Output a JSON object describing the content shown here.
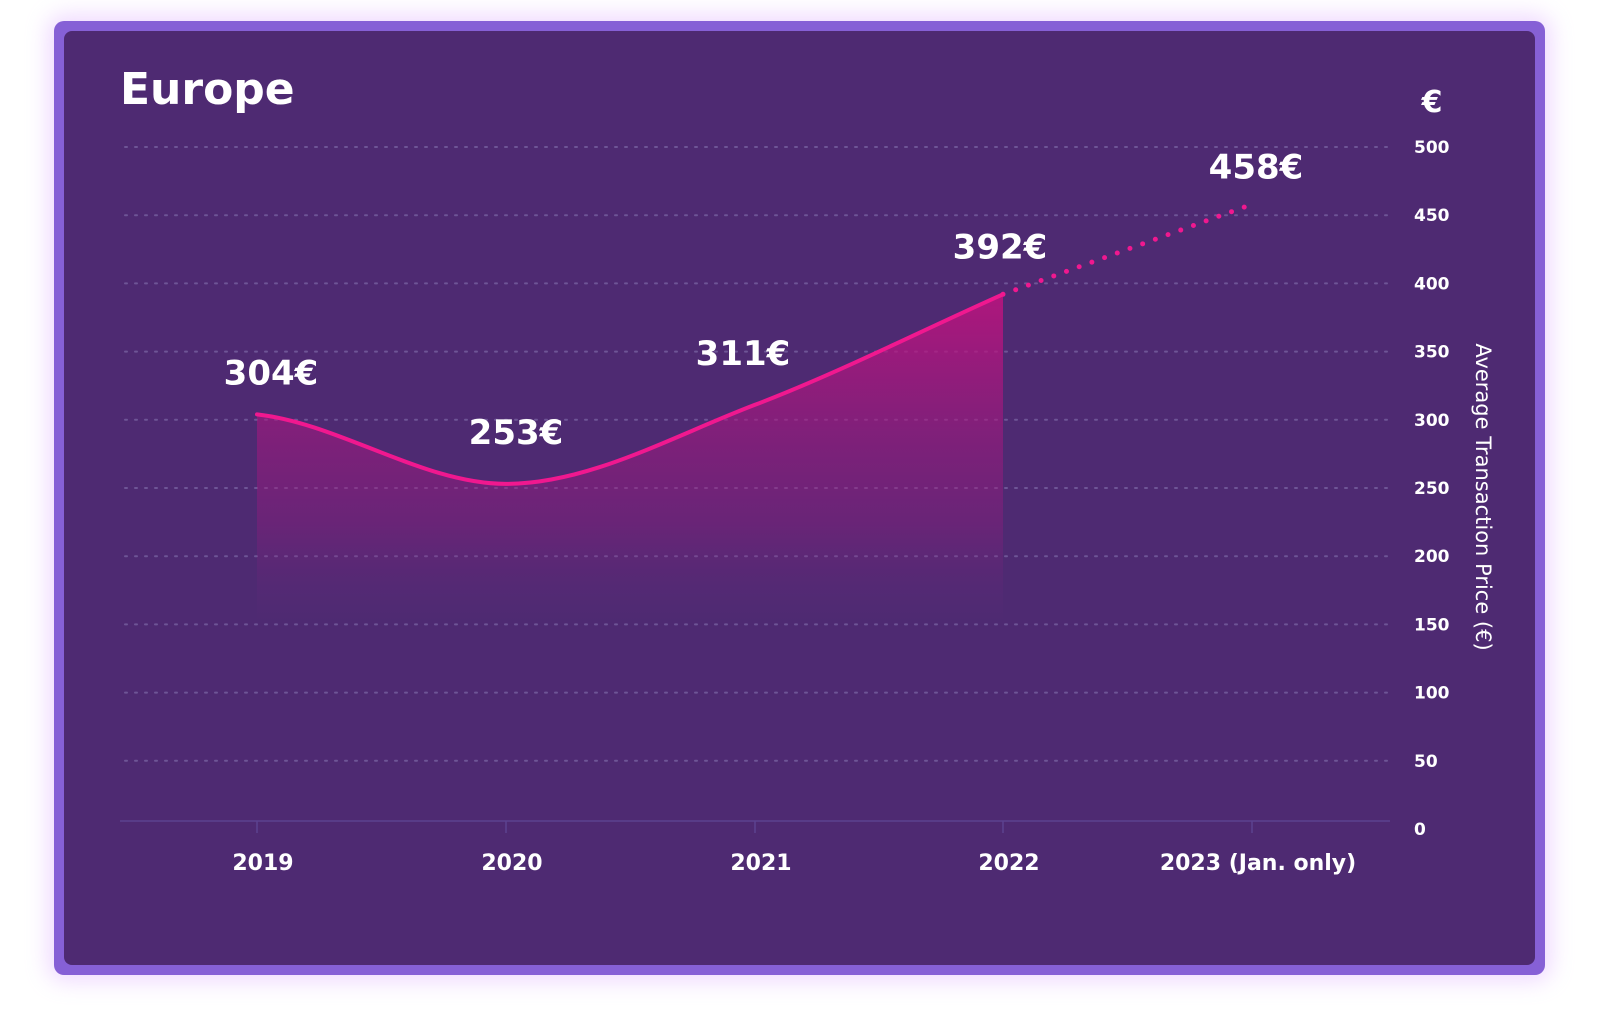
{
  "chart_data": {
    "type": "line",
    "title": "Europe",
    "unit_label": "€",
    "ylabel": "Average Transaction Price (€)",
    "xlabel": "",
    "categories": [
      "2019",
      "2020",
      "2021",
      "2022",
      "2023 (Jan. only)"
    ],
    "values": [
      304,
      253,
      311,
      392,
      458
    ],
    "data_labels": [
      "304€",
      "253€",
      "311€",
      "392€",
      "458€"
    ],
    "projected_segment": [
      "2022",
      "2023 (Jan. only)"
    ],
    "ylim": [
      0,
      500
    ],
    "yticks": [
      0,
      50,
      100,
      150,
      200,
      250,
      300,
      350,
      400,
      450,
      500
    ],
    "grid": true,
    "colors": {
      "line": "#f0188f",
      "background": "#4e2a72",
      "border": "#8660d6",
      "grid": "#6e5596"
    }
  }
}
